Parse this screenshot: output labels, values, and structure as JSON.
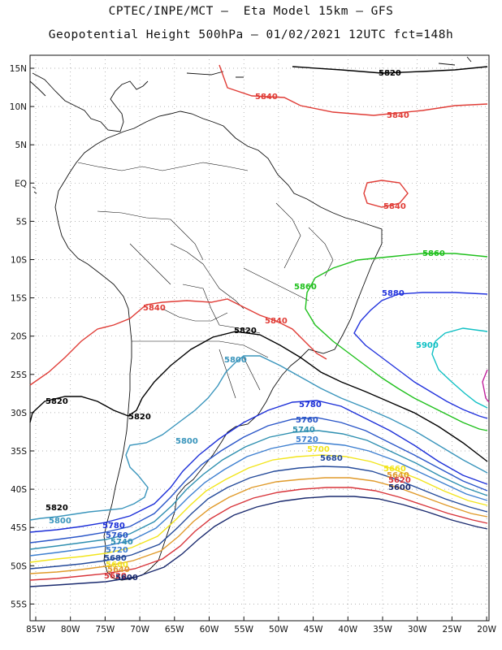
{
  "title_line1": "CPTEC/INPE/MCT –  Eta Model 15km – GFS",
  "title_line2": "Geopotential Height 500hPa – 01/02/2021 12UTC fct=148h",
  "lat_labels": [
    "15N",
    "10N",
    "5N",
    "EQ",
    "5S",
    "10S",
    "15S",
    "20S",
    "25S",
    "30S",
    "35S",
    "40S",
    "45S",
    "50S",
    "55S"
  ],
  "lon_labels": [
    "85W",
    "80W",
    "75W",
    "70W",
    "65W",
    "60W",
    "55W",
    "50W",
    "45W",
    "40W",
    "35W",
    "30W",
    "25W",
    "20W"
  ],
  "contour_colors": {
    "5600": "#1a2a6e",
    "5620": "#d8343a",
    "5640": "#e09a2a",
    "5660": "#f2e51c",
    "5680": "#244a9a",
    "5700": "#f2e51c",
    "5720": "#3d7fd0",
    "5740": "#2e8fb0",
    "5760": "#2a56c8",
    "5780": "#1c2fd8",
    "5800": "#3a95bc",
    "5820": "#000000",
    "5840": "#e03c36",
    "5860": "#1fc01c",
    "5880": "#2233dd",
    "5900": "#10c0c4",
    "5920": "#c0209c"
  },
  "contour_labels": [
    {
      "text": "5820",
      "color": "#000000"
    },
    {
      "text": "5840",
      "color": "#e03c36"
    },
    {
      "text": "5840",
      "color": "#e03c36"
    },
    {
      "text": "5840",
      "color": "#e03c36"
    },
    {
      "text": "5860",
      "color": "#1fc01c"
    },
    {
      "text": "5860",
      "color": "#1fc01c"
    },
    {
      "text": "5880",
      "color": "#2233dd"
    },
    {
      "text": "5900",
      "color": "#10c0c4"
    },
    {
      "text": "5840",
      "color": "#e03c36"
    },
    {
      "text": "5840",
      "color": "#e03c36"
    },
    {
      "text": "5820",
      "color": "#000000"
    },
    {
      "text": "5800",
      "color": "#3a95bc"
    },
    {
      "text": "5820",
      "color": "#000000"
    },
    {
      "text": "5820",
      "color": "#000000"
    },
    {
      "text": "5780",
      "color": "#1c2fd8"
    },
    {
      "text": "5760",
      "color": "#2a56c8"
    },
    {
      "text": "5740",
      "color": "#2e8fb0"
    },
    {
      "text": "5720",
      "color": "#3d7fd0"
    },
    {
      "text": "5700",
      "color": "#f2e51c"
    },
    {
      "text": "5680",
      "color": "#244a9a"
    },
    {
      "text": "5800",
      "color": "#3a95bc"
    },
    {
      "text": "5660",
      "color": "#f2e51c"
    },
    {
      "text": "5640",
      "color": "#e09a2a"
    },
    {
      "text": "5620",
      "color": "#d8343a"
    },
    {
      "text": "5600",
      "color": "#1a2a6e"
    },
    {
      "text": "5820",
      "color": "#000000"
    },
    {
      "text": "5800",
      "color": "#3a95bc"
    },
    {
      "text": "5780",
      "color": "#1c2fd8"
    },
    {
      "text": "5760",
      "color": "#2a56c8"
    },
    {
      "text": "5740",
      "color": "#2e8fb0"
    },
    {
      "text": "5720",
      "color": "#3d7fd0"
    },
    {
      "text": "5680",
      "color": "#244a9a"
    },
    {
      "text": "5660",
      "color": "#f2e51c"
    },
    {
      "text": "5640",
      "color": "#e09a2a"
    },
    {
      "text": "5620",
      "color": "#d8343a"
    },
    {
      "text": "5600",
      "color": "#1a2a6e"
    }
  ]
}
